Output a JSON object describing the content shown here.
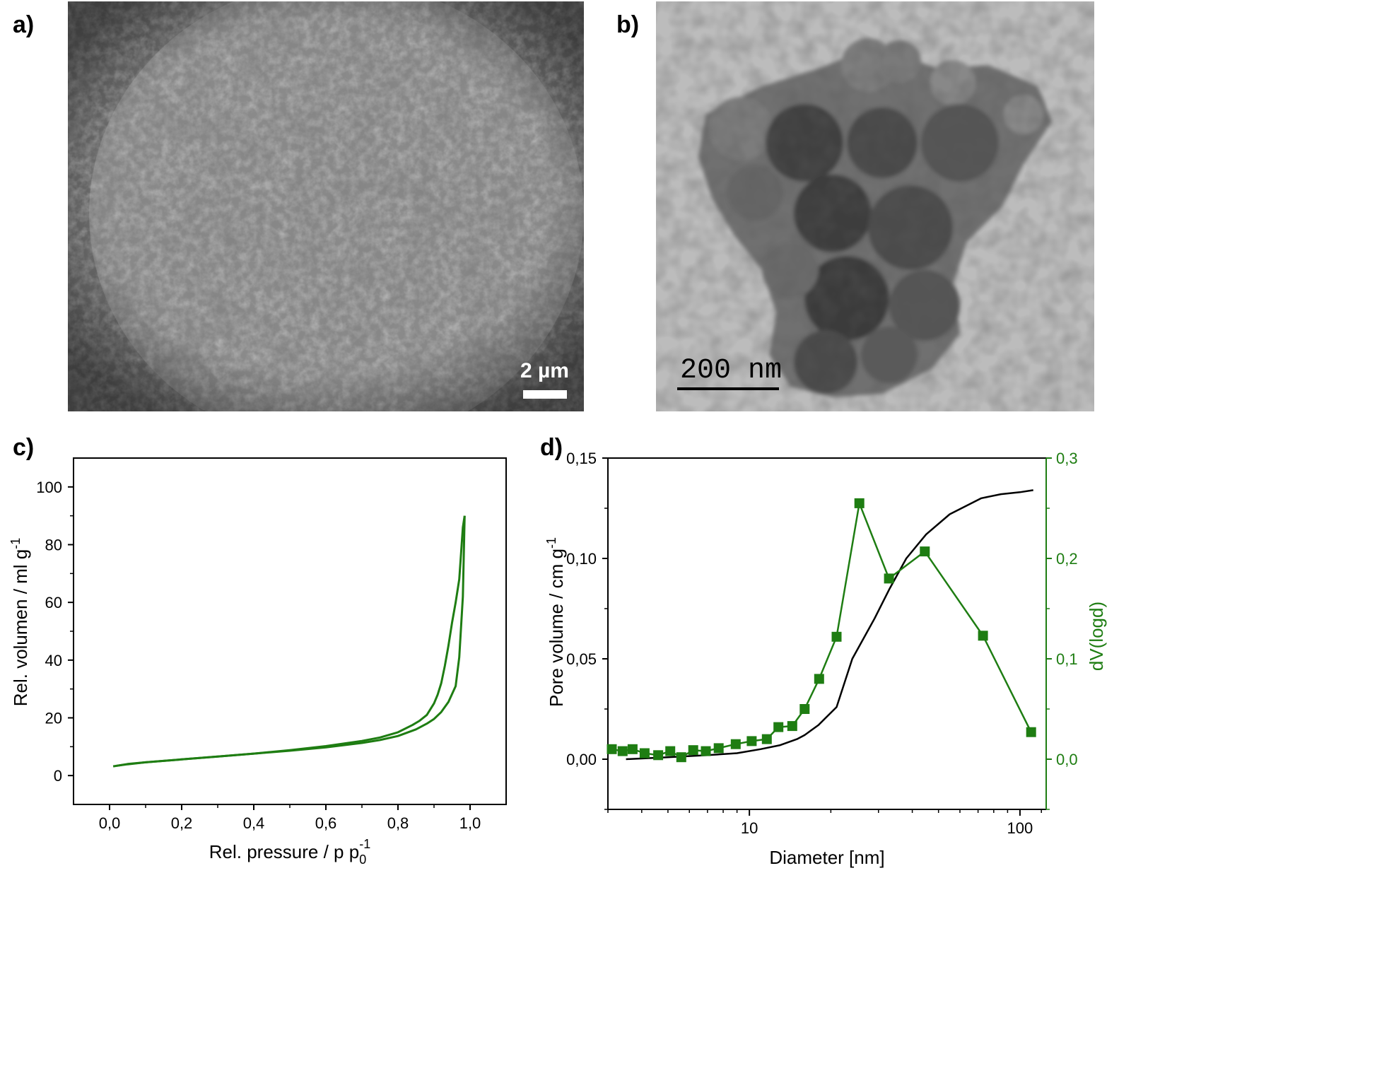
{
  "panels": {
    "a": {
      "label": "a)",
      "scalebar": "2 µm"
    },
    "b": {
      "label": "b)",
      "scalebar": "200 nm"
    },
    "c": {
      "label": "c)"
    },
    "d": {
      "label": "d)"
    }
  },
  "colors": {
    "green": "#1e7d12",
    "black": "#000000",
    "sem_bg": "#7a7a7a",
    "tem_bg": "#b9b9b9"
  },
  "chart_data": [
    {
      "type": "line",
      "panel": "c",
      "xlabel": "Rel. pressure / p p",
      "xlabel_sub": "0",
      "xlabel_sup": "-1",
      "ylabel": "Rel. volumen / ml g",
      "ylabel_sup": "-1",
      "xlim": [
        -0.1,
        1.1
      ],
      "ylim": [
        -10,
        110
      ],
      "x_ticks": [
        0.0,
        0.2,
        0.4,
        0.6,
        0.8,
        1.0
      ],
      "x_tick_labels": [
        "0,0",
        "0,2",
        "0,4",
        "0,6",
        "0,8",
        "1,0"
      ],
      "y_ticks": [
        0,
        20,
        40,
        60,
        80,
        100
      ],
      "y_tick_labels": [
        "0",
        "20",
        "40",
        "60",
        "80",
        "100"
      ],
      "series": [
        {
          "role": "adsorption",
          "x": [
            0.01,
            0.05,
            0.1,
            0.2,
            0.3,
            0.4,
            0.5,
            0.6,
            0.7,
            0.75,
            0.8,
            0.85,
            0.88,
            0.9,
            0.92,
            0.94,
            0.96,
            0.97,
            0.98,
            0.985
          ],
          "y": [
            3.2,
            4.0,
            4.6,
            5.6,
            6.6,
            7.6,
            8.6,
            9.8,
            11.3,
            12.3,
            13.7,
            16.0,
            18.0,
            19.6,
            22.0,
            25.5,
            31.0,
            41.0,
            62.0,
            90.0
          ]
        },
        {
          "role": "desorption",
          "x": [
            0.985,
            0.98,
            0.97,
            0.96,
            0.95,
            0.94,
            0.93,
            0.92,
            0.91,
            0.9,
            0.88,
            0.86,
            0.84,
            0.8,
            0.75,
            0.7,
            0.6,
            0.5,
            0.4,
            0.3,
            0.2,
            0.1,
            0.05,
            0.02
          ],
          "y": [
            90.0,
            86.0,
            68.0,
            60.0,
            53.0,
            45.0,
            38.0,
            32.0,
            28.0,
            25.0,
            21.0,
            19.0,
            17.5,
            15.0,
            13.2,
            12.0,
            10.2,
            8.8,
            7.6,
            6.6,
            5.6,
            4.6,
            3.9,
            3.4
          ]
        }
      ]
    },
    {
      "type": "line",
      "panel": "d",
      "xlabel": "Diameter [nm]",
      "ylabel": "Pore volume / cm g",
      "ylabel_sup": "-1",
      "y2label": "dV(logd)",
      "x_scale": "log",
      "xlim": [
        3,
        125
      ],
      "ylim": [
        -0.025,
        0.15
      ],
      "y2lim": [
        -0.05,
        0.3
      ],
      "x_ticks": [
        10,
        100
      ],
      "x_tick_labels": [
        "10",
        "100"
      ],
      "y_ticks": [
        0.0,
        0.05,
        0.1,
        0.15
      ],
      "y_tick_labels": [
        "0,00",
        "0,05",
        "0,10",
        "0,15"
      ],
      "y2_ticks": [
        0.0,
        0.1,
        0.2,
        0.3
      ],
      "y2_tick_labels": [
        "0,0",
        "0,1",
        "0,2",
        "0,3"
      ],
      "series": [
        {
          "role": "cumulative pore volume",
          "axis": "left",
          "x": [
            3.5,
            5,
            7,
            9,
            11,
            13,
            15,
            16,
            18,
            21,
            24,
            29,
            33,
            38,
            45,
            55,
            72,
            85,
            100,
            112
          ],
          "y": [
            0.0,
            0.001,
            0.002,
            0.003,
            0.005,
            0.007,
            0.01,
            0.012,
            0.017,
            0.026,
            0.05,
            0.07,
            0.085,
            0.1,
            0.112,
            0.122,
            0.13,
            0.132,
            0.133,
            0.134
          ]
        },
        {
          "role": "dV(logd)",
          "axis": "right",
          "x": [
            3.1,
            3.4,
            3.7,
            4.1,
            4.6,
            5.1,
            5.6,
            6.2,
            6.9,
            7.7,
            8.9,
            10.2,
            11.6,
            12.8,
            14.4,
            16.0,
            18.1,
            21.0,
            25.5,
            32.8,
            44.5,
            73.0,
            110.0
          ],
          "y": [
            0.01,
            0.008,
            0.01,
            0.006,
            0.004,
            0.008,
            0.002,
            0.009,
            0.008,
            0.011,
            0.015,
            0.018,
            0.02,
            0.032,
            0.033,
            0.05,
            0.08,
            0.122,
            0.255,
            0.18,
            0.207,
            0.123,
            0.027
          ]
        }
      ]
    }
  ]
}
